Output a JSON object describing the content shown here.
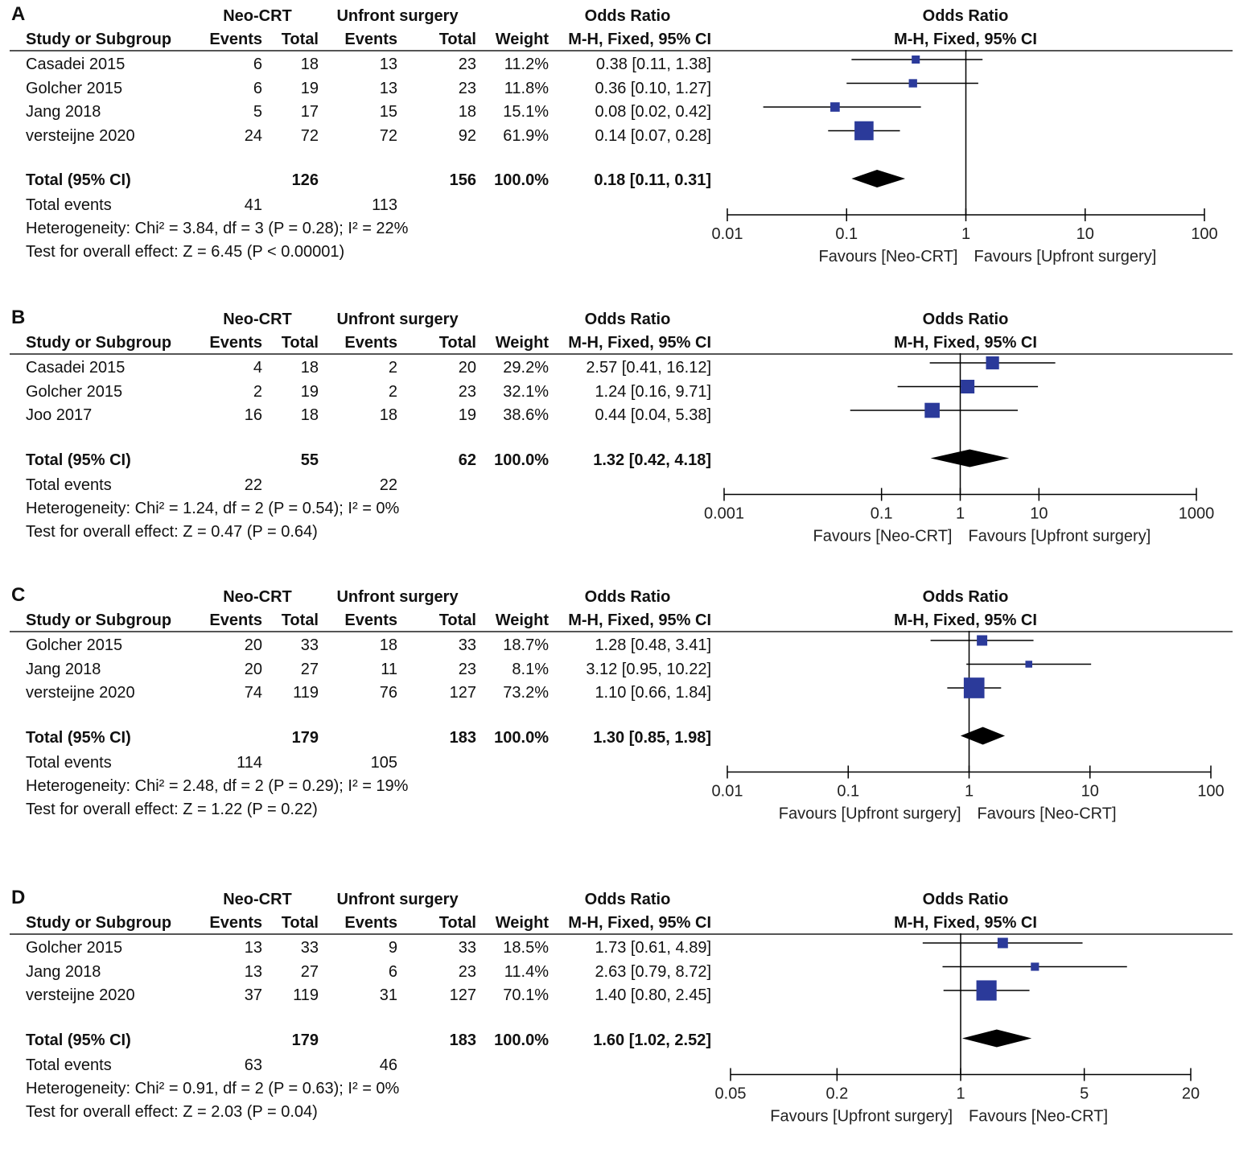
{
  "chart_data": [
    {
      "type": "forest",
      "panel": "A",
      "group1": "Neo-CRT",
      "group2": "Unfront surgery",
      "effect_measure": "Odds Ratio",
      "method": "M-H, Fixed, 95% CI",
      "columns": [
        "Study or Subgroup",
        "Events",
        "Total",
        "Events",
        "Total",
        "Weight",
        "M-H, Fixed, 95% CI"
      ],
      "studies": [
        {
          "name": "Casadei 2015",
          "e1": "6",
          "t1": "18",
          "e2": "13",
          "t2": "23",
          "weight": "11.2%",
          "ci_text": "0.38 [0.11, 1.38]",
          "or": 0.38,
          "lo": 0.11,
          "hi": 1.38,
          "w": 11.2
        },
        {
          "name": "Golcher 2015",
          "e1": "6",
          "t1": "19",
          "e2": "13",
          "t2": "23",
          "weight": "11.8%",
          "ci_text": "0.36 [0.10, 1.27]",
          "or": 0.36,
          "lo": 0.1,
          "hi": 1.27,
          "w": 11.8
        },
        {
          "name": "Jang 2018",
          "e1": "5",
          "t1": "17",
          "e2": "15",
          "t2": "18",
          "weight": "15.1%",
          "ci_text": "0.08 [0.02, 0.42]",
          "or": 0.08,
          "lo": 0.02,
          "hi": 0.42,
          "w": 15.1
        },
        {
          "name": "versteijne 2020",
          "e1": "24",
          "t1": "72",
          "e2": "72",
          "t2": "92",
          "weight": "61.9%",
          "ci_text": "0.14 [0.07, 0.28]",
          "or": 0.14,
          "lo": 0.07,
          "hi": 0.28,
          "w": 61.9
        }
      ],
      "total": {
        "label": "Total (95% CI)",
        "t1": "126",
        "t2": "156",
        "weight": "100.0%",
        "ci_text": "0.18 [0.11, 0.31]",
        "or": 0.18,
        "lo": 0.11,
        "hi": 0.31
      },
      "total_events": {
        "label": "Total events",
        "e1": "41",
        "e2": "113"
      },
      "heterogeneity": "Heterogeneity: Chi² = 3.84, df = 3 (P = 0.28); I² = 22%",
      "overall": "Test for overall effect: Z = 6.45 (P < 0.00001)",
      "axis": {
        "ticks": [
          0.01,
          0.1,
          1,
          10,
          100
        ],
        "tick_labels": [
          "0.01",
          "0.1",
          "1",
          "10",
          "100"
        ],
        "min": 0.01,
        "max": 100
      },
      "favours_left": "Favours [Neo-CRT]",
      "favours_right": "Favours [Upfront surgery]"
    },
    {
      "type": "forest",
      "panel": "B",
      "group1": "Neo-CRT",
      "group2": "Unfront surgery",
      "effect_measure": "Odds Ratio",
      "method": "M-H, Fixed, 95% CI",
      "columns": [
        "Study or Subgroup",
        "Events",
        "Total",
        "Events",
        "Total",
        "Weight",
        "M-H, Fixed, 95% CI"
      ],
      "studies": [
        {
          "name": "Casadei 2015",
          "e1": "4",
          "t1": "18",
          "e2": "2",
          "t2": "20",
          "weight": "29.2%",
          "ci_text": "2.57 [0.41, 16.12]",
          "or": 2.57,
          "lo": 0.41,
          "hi": 16.12,
          "w": 29.2
        },
        {
          "name": "Golcher 2015",
          "e1": "2",
          "t1": "19",
          "e2": "2",
          "t2": "23",
          "weight": "32.1%",
          "ci_text": "1.24 [0.16, 9.71]",
          "or": 1.24,
          "lo": 0.16,
          "hi": 9.71,
          "w": 32.1
        },
        {
          "name": "Joo 2017",
          "e1": "16",
          "t1": "18",
          "e2": "18",
          "t2": "19",
          "weight": "38.6%",
          "ci_text": "0.44 [0.04, 5.38]",
          "or": 0.44,
          "lo": 0.04,
          "hi": 5.38,
          "w": 38.6
        }
      ],
      "total": {
        "label": "Total (95% CI)",
        "t1": "55",
        "t2": "62",
        "weight": "100.0%",
        "ci_text": "1.32 [0.42, 4.18]",
        "or": 1.32,
        "lo": 0.42,
        "hi": 4.18
      },
      "total_events": {
        "label": "Total events",
        "e1": "22",
        "e2": "22"
      },
      "heterogeneity": "Heterogeneity: Chi² = 1.24, df = 2 (P = 0.54); I² = 0%",
      "overall": "Test for overall effect: Z = 0.47 (P = 0.64)",
      "axis": {
        "ticks": [
          0.001,
          0.1,
          1,
          10,
          1000
        ],
        "tick_labels": [
          "0.001",
          "0.1",
          "1",
          "10",
          "1000"
        ],
        "min": 0.001,
        "max": 1000
      },
      "favours_left": "Favours [Neo-CRT]",
      "favours_right": "Favours [Upfront surgery]"
    },
    {
      "type": "forest",
      "panel": "C",
      "group1": "Neo-CRT",
      "group2": "Unfront surgery",
      "effect_measure": "Odds Ratio",
      "method": "M-H, Fixed, 95% CI",
      "columns": [
        "Study or Subgroup",
        "Events",
        "Total",
        "Events",
        "Total",
        "Weight",
        "M-H, Fixed, 95% CI"
      ],
      "studies": [
        {
          "name": "Golcher 2015",
          "e1": "20",
          "t1": "33",
          "e2": "18",
          "t2": "33",
          "weight": "18.7%",
          "ci_text": "1.28 [0.48, 3.41]",
          "or": 1.28,
          "lo": 0.48,
          "hi": 3.41,
          "w": 18.7
        },
        {
          "name": "Jang 2018",
          "e1": "20",
          "t1": "27",
          "e2": "11",
          "t2": "23",
          "weight": "8.1%",
          "ci_text": "3.12 [0.95, 10.22]",
          "or": 3.12,
          "lo": 0.95,
          "hi": 10.22,
          "w": 8.1
        },
        {
          "name": "versteijne 2020",
          "e1": "74",
          "t1": "119",
          "e2": "76",
          "t2": "127",
          "weight": "73.2%",
          "ci_text": "1.10 [0.66, 1.84]",
          "or": 1.1,
          "lo": 0.66,
          "hi": 1.84,
          "w": 73.2
        }
      ],
      "total": {
        "label": "Total (95% CI)",
        "t1": "179",
        "t2": "183",
        "weight": "100.0%",
        "ci_text": "1.30 [0.85, 1.98]",
        "or": 1.3,
        "lo": 0.85,
        "hi": 1.98
      },
      "total_events": {
        "label": "Total events",
        "e1": "114",
        "e2": "105"
      },
      "heterogeneity": "Heterogeneity: Chi² = 2.48, df = 2 (P = 0.29); I² = 19%",
      "overall": "Test for overall effect: Z = 1.22 (P = 0.22)",
      "axis": {
        "ticks": [
          0.01,
          0.1,
          1,
          10,
          100
        ],
        "tick_labels": [
          "0.01",
          "0.1",
          "1",
          "10",
          "100"
        ],
        "min": 0.01,
        "max": 100
      },
      "favours_left": "Favours [Upfront surgery]",
      "favours_right": "Favours [Neo-CRT]"
    },
    {
      "type": "forest",
      "panel": "D",
      "group1": "Neo-CRT",
      "group2": "Unfront surgery",
      "effect_measure": "Odds Ratio",
      "method": "M-H, Fixed, 95% CI",
      "columns": [
        "Study or Subgroup",
        "Events",
        "Total",
        "Events",
        "Total",
        "Weight",
        "M-H, Fixed, 95% CI"
      ],
      "studies": [
        {
          "name": "Golcher 2015",
          "e1": "13",
          "t1": "33",
          "e2": "9",
          "t2": "33",
          "weight": "18.5%",
          "ci_text": "1.73 [0.61, 4.89]",
          "or": 1.73,
          "lo": 0.61,
          "hi": 4.89,
          "w": 18.5
        },
        {
          "name": "Jang 2018",
          "e1": "13",
          "t1": "27",
          "e2": "6",
          "t2": "23",
          "weight": "11.4%",
          "ci_text": "2.63 [0.79, 8.72]",
          "or": 2.63,
          "lo": 0.79,
          "hi": 8.72,
          "w": 11.4
        },
        {
          "name": "versteijne 2020",
          "e1": "37",
          "t1": "119",
          "e2": "31",
          "t2": "127",
          "weight": "70.1%",
          "ci_text": "1.40 [0.80, 2.45]",
          "or": 1.4,
          "lo": 0.8,
          "hi": 2.45,
          "w": 70.1
        }
      ],
      "total": {
        "label": "Total (95% CI)",
        "t1": "179",
        "t2": "183",
        "weight": "100.0%",
        "ci_text": "1.60 [1.02, 2.52]",
        "or": 1.6,
        "lo": 1.02,
        "hi": 2.52
      },
      "total_events": {
        "label": "Total events",
        "e1": "63",
        "e2": "46"
      },
      "heterogeneity": "Heterogeneity: Chi² = 0.91, df = 2 (P = 0.63); I² = 0%",
      "overall": "Test for overall effect: Z = 2.03 (P = 0.04)",
      "axis": {
        "ticks": [
          0.05,
          0.2,
          1,
          5,
          20
        ],
        "tick_labels": [
          "0.05",
          "0.2",
          "1",
          "5",
          "20"
        ],
        "min": 0.05,
        "max": 20
      },
      "favours_left": "Favours [Upfront surgery]",
      "favours_right": "Favours [Neo-CRT]"
    }
  ],
  "colors": {
    "marker": "#2b3a9a",
    "diamond": "#000000",
    "line": "#000000",
    "ci_line": "#555555"
  }
}
